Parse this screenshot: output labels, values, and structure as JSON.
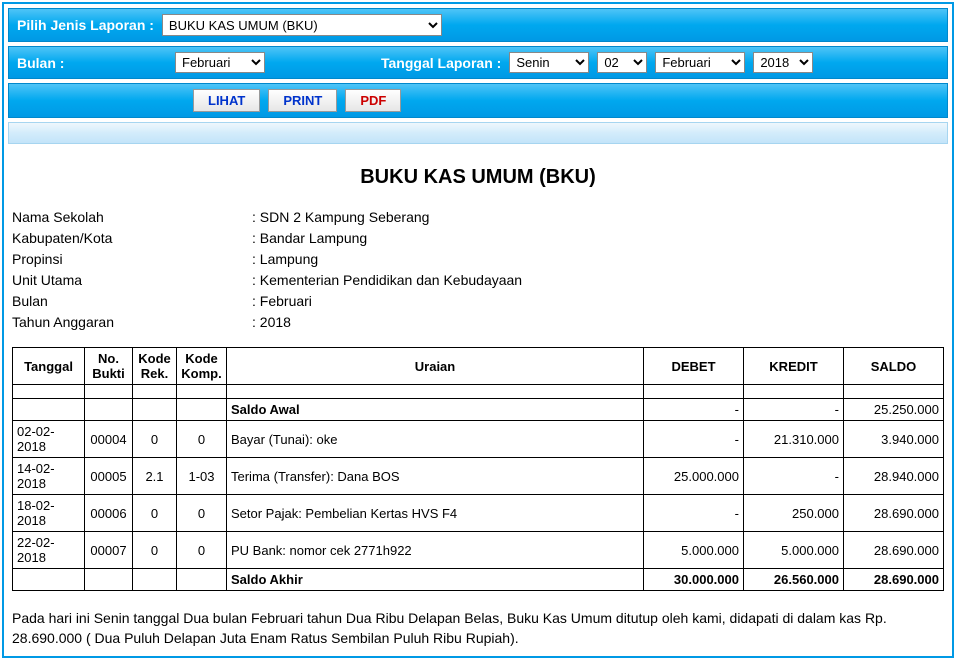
{
  "filter": {
    "jenis_label": "Pilih Jenis Laporan :",
    "jenis_value": "BUKU KAS UMUM (BKU)",
    "bulan_label": "Bulan :",
    "bulan_value": "Februari",
    "tgl_label": "Tanggal Laporan :",
    "hari": "Senin",
    "tanggal": "02",
    "bulan2": "Februari",
    "tahun": "2018"
  },
  "buttons": {
    "lihat": "LIHAT",
    "print": "PRINT",
    "pdf": "PDF"
  },
  "report": {
    "title": "BUKU KAS UMUM (BKU)",
    "info": {
      "nama_sekolah_l": "Nama Sekolah",
      "nama_sekolah_v": "SDN 2 Kampung Seberang",
      "kabupaten_l": "Kabupaten/Kota",
      "kabupaten_v": "Bandar Lampung",
      "propinsi_l": "Propinsi",
      "propinsi_v": "Lampung",
      "unit_l": "Unit Utama",
      "unit_v": "Kementerian Pendidikan dan Kebudayaan",
      "bulan_l": "Bulan",
      "bulan_v": "Februari",
      "tahun_l": "Tahun Anggaran",
      "tahun_v": "2018"
    },
    "headers": {
      "tanggal": "Tanggal",
      "no_bukti": "No. Bukti",
      "kode_rek": "Kode Rek.",
      "kode_komp": "Kode Komp.",
      "uraian": "Uraian",
      "debet": "DEBET",
      "kredit": "KREDIT",
      "saldo": "SALDO"
    },
    "saldo_awal_label": "Saldo Awal",
    "saldo_awal": {
      "debet": "-",
      "kredit": "-",
      "saldo": "25.250.000"
    },
    "rows": [
      {
        "tgl": "02-02-2018",
        "bukti": "00004",
        "rek": "0",
        "komp": "0",
        "uraian": "Bayar (Tunai): oke",
        "debet": "-",
        "kredit": "21.310.000",
        "saldo": "3.940.000"
      },
      {
        "tgl": "14-02-2018",
        "bukti": "00005",
        "rek": "2.1",
        "komp": "1-03",
        "uraian": "Terima (Transfer): Dana BOS",
        "debet": "25.000.000",
        "kredit": "-",
        "saldo": "28.940.000"
      },
      {
        "tgl": "18-02-2018",
        "bukti": "00006",
        "rek": "0",
        "komp": "0",
        "uraian": "Setor Pajak: Pembelian Kertas HVS F4",
        "debet": "-",
        "kredit": "250.000",
        "saldo": "28.690.000"
      },
      {
        "tgl": "22-02-2018",
        "bukti": "00007",
        "rek": "0",
        "komp": "0",
        "uraian": "PU Bank: nomor cek 2771h922",
        "debet": "5.000.000",
        "kredit": "5.000.000",
        "saldo": "28.690.000"
      }
    ],
    "saldo_akhir_label": "Saldo Akhir",
    "saldo_akhir": {
      "debet": "30.000.000",
      "kredit": "26.560.000",
      "saldo": "28.690.000"
    },
    "closing": "Pada hari ini Senin tanggal Dua bulan Februari tahun Dua Ribu Delapan Belas, Buku Kas Umum ditutup oleh kami, didapati di dalam kas Rp. 28.690.000 ( Dua Puluh Delapan Juta Enam Ratus Sembilan Puluh Ribu Rupiah)."
  }
}
